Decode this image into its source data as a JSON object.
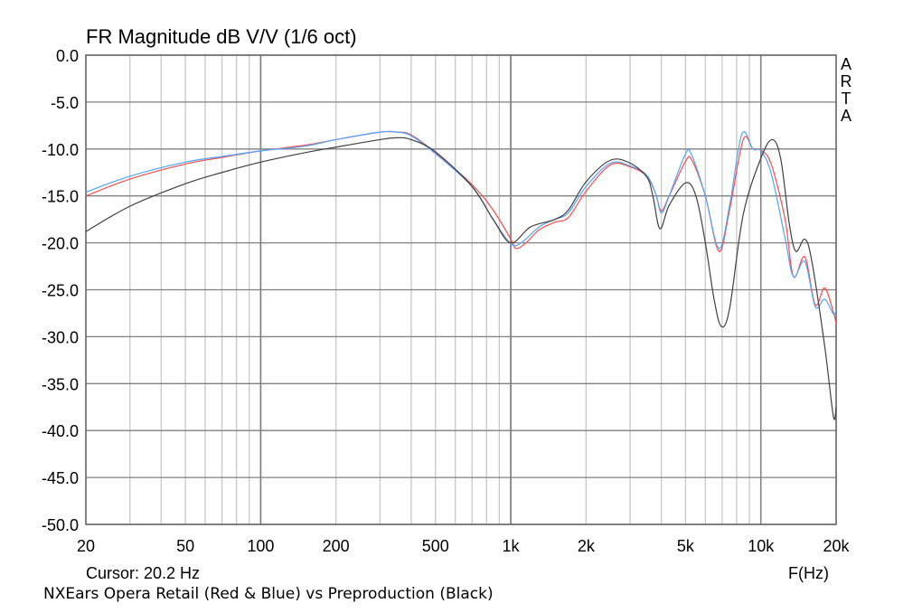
{
  "chart_data": {
    "type": "line",
    "title": "FR Magnitude dB V/V (1/6 oct)",
    "xlabel": "F(Hz)",
    "ylabel": "",
    "x_scale": "log",
    "xlim": [
      20,
      20000
    ],
    "ylim": [
      -50,
      0
    ],
    "grid": true,
    "x_ticks": [
      20,
      50,
      100,
      200,
      500,
      1000,
      2000,
      5000,
      10000,
      20000
    ],
    "x_tick_labels": [
      "20",
      "50",
      "100",
      "200",
      "500",
      "1k",
      "2k",
      "5k",
      "10k",
      "20k"
    ],
    "y_ticks": [
      0,
      -5,
      -10,
      -15,
      -20,
      -25,
      -30,
      -35,
      -40,
      -45,
      -50
    ],
    "y_tick_labels": [
      "0.0",
      "-5.0",
      "-10.0",
      "-15.0",
      "-20.0",
      "-25.0",
      "-30.0",
      "-35.0",
      "-40.0",
      "-45.0",
      "-50.0"
    ],
    "cursor": "Cursor: 20.2 Hz",
    "caption": "NXEars Opera Retail (Red & Blue) vs Preproduction (Black)",
    "logo": "ARTA",
    "series": [
      {
        "color": "#ff4a4a",
        "x": [
          20,
          30,
          50,
          70,
          100,
          150,
          200,
          300,
          350,
          400,
          500,
          700,
          850,
          1000,
          1050,
          1150,
          1300,
          1500,
          1700,
          2000,
          2500,
          3000,
          3500,
          3800,
          4000,
          4300,
          5000,
          5300,
          6000,
          6800,
          7500,
          8500,
          9300,
          10000,
          11000,
          12500,
          13500,
          15000,
          16500,
          18000,
          19500,
          20000
        ],
        "y": [
          -15.0,
          -13.2,
          -11.6,
          -10.9,
          -10.2,
          -9.6,
          -9.0,
          -8.2,
          -8.2,
          -8.5,
          -10.4,
          -13.8,
          -16.5,
          -19.6,
          -20.6,
          -20.0,
          -18.6,
          -17.8,
          -17.3,
          -14.5,
          -11.7,
          -11.9,
          -12.9,
          -14.8,
          -16.6,
          -15.0,
          -11.3,
          -11.2,
          -15.0,
          -20.9,
          -16.5,
          -9.0,
          -10.0,
          -10.1,
          -11.6,
          -17.5,
          -23.6,
          -21.5,
          -26.6,
          -24.8,
          -27.4,
          -28.6
        ]
      },
      {
        "color": "#4da6ff",
        "x": [
          20,
          30,
          50,
          70,
          100,
          150,
          200,
          300,
          350,
          400,
          500,
          700,
          850,
          1000,
          1100,
          1300,
          1500,
          1700,
          2000,
          2500,
          3000,
          3500,
          3800,
          4000,
          4300,
          5000,
          5300,
          6000,
          6800,
          7500,
          8400,
          9300,
          10000,
          11000,
          12500,
          13500,
          15000,
          16500,
          18000,
          19500,
          20000
        ],
        "y": [
          -14.6,
          -12.9,
          -11.4,
          -10.8,
          -10.2,
          -9.7,
          -9.0,
          -8.2,
          -8.2,
          -8.6,
          -10.5,
          -14.0,
          -17.5,
          -20.1,
          -20.0,
          -18.3,
          -17.5,
          -16.8,
          -14.0,
          -11.5,
          -11.8,
          -12.8,
          -14.8,
          -16.8,
          -15.0,
          -10.5,
          -10.7,
          -15.0,
          -20.6,
          -16.0,
          -8.4,
          -10.0,
          -10.2,
          -12.6,
          -19.5,
          -23.6,
          -22.0,
          -26.8,
          -26.0,
          -27.6,
          -27.2
        ]
      },
      {
        "color": "#404040",
        "x": [
          20,
          30,
          50,
          70,
          100,
          150,
          200,
          300,
          350,
          400,
          500,
          700,
          850,
          1000,
          1200,
          1500,
          1700,
          2000,
          2500,
          3000,
          3500,
          3700,
          3950,
          4300,
          5000,
          5500,
          6000,
          6500,
          6950,
          7500,
          8500,
          10000,
          11100,
          12000,
          13000,
          13800,
          15000,
          16000,
          18000,
          19500,
          20000
        ],
        "y": [
          -18.8,
          -16.1,
          -13.7,
          -12.5,
          -11.4,
          -10.4,
          -9.8,
          -9.0,
          -8.8,
          -9.0,
          -10.3,
          -14.0,
          -17.5,
          -20.0,
          -18.3,
          -17.5,
          -16.5,
          -13.5,
          -11.2,
          -11.5,
          -13.0,
          -15.0,
          -18.5,
          -16.0,
          -13.6,
          -15.0,
          -20.0,
          -26.0,
          -28.9,
          -27.0,
          -17.0,
          -11.0,
          -9.0,
          -11.0,
          -18.0,
          -20.9,
          -19.6,
          -22.0,
          -31.0,
          -38.5,
          -37.5
        ]
      }
    ]
  }
}
